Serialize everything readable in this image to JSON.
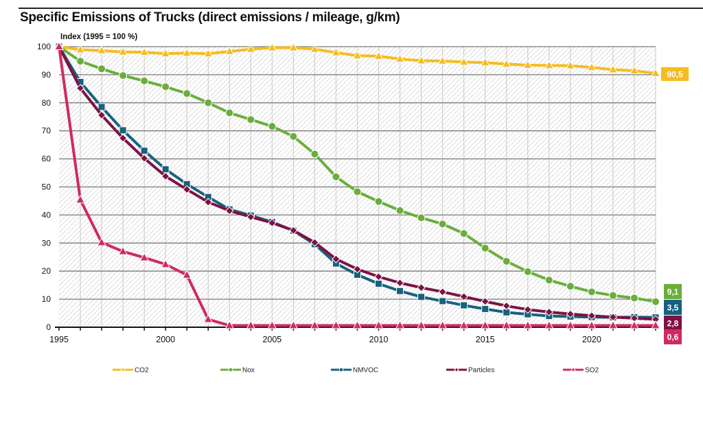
{
  "page": {
    "title": "Specific Emissions of Trucks (direct emissions / mileage, g/km)"
  },
  "chart_data": {
    "type": "line",
    "title": "Specific Emissions of Trucks (direct emissions / mileage, g/km)",
    "ylabel": "Index (1995 = 100 %)",
    "xlabel": "",
    "xlim": [
      1995,
      2023
    ],
    "ylim": [
      0,
      100
    ],
    "yticks": [
      0,
      10,
      20,
      30,
      40,
      50,
      60,
      70,
      80,
      90,
      100
    ],
    "xtick_labels": [
      1995,
      2000,
      2005,
      2010,
      2015,
      2020
    ],
    "grid": true,
    "legend_position": "bottom",
    "x": [
      1995,
      1996,
      1997,
      1998,
      1999,
      2000,
      2001,
      2002,
      2003,
      2004,
      2005,
      2006,
      2007,
      2008,
      2009,
      2010,
      2011,
      2012,
      2013,
      2014,
      2015,
      2016,
      2017,
      2018,
      2019,
      2020,
      2021,
      2022,
      2023
    ],
    "series": [
      {
        "name": "CO2",
        "color": "#f5bd1f",
        "marker": "triangle",
        "end_label": "90,5",
        "values": [
          100,
          98.9,
          98.6,
          98.1,
          98.0,
          97.5,
          97.7,
          97.5,
          98.3,
          99.1,
          99.6,
          99.6,
          99.1,
          97.9,
          96.8,
          96.6,
          95.6,
          95.0,
          94.9,
          94.5,
          94.3,
          93.8,
          93.4,
          93.3,
          93.2,
          92.6,
          91.8,
          91.4,
          90.5
        ]
      },
      {
        "name": "Nox",
        "color": "#6aae3c",
        "marker": "circle",
        "end_label": "9,1",
        "values": [
          100,
          94.8,
          92.1,
          89.7,
          87.8,
          85.7,
          83.3,
          80.0,
          76.4,
          74.0,
          71.6,
          68.0,
          61.7,
          53.6,
          48.3,
          44.8,
          41.6,
          39.0,
          36.8,
          33.4,
          28.2,
          23.5,
          19.8,
          16.8,
          14.6,
          12.6,
          11.3,
          10.4,
          9.1
        ]
      },
      {
        "name": "NMVOC",
        "color": "#17617f",
        "marker": "square",
        "end_label": "3,5",
        "values": [
          100,
          87.4,
          78.5,
          70.2,
          62.9,
          56.3,
          51.0,
          46.4,
          42.0,
          39.8,
          37.5,
          34.4,
          29.6,
          22.7,
          18.7,
          15.5,
          12.9,
          10.8,
          9.3,
          7.8,
          6.5,
          5.3,
          4.6,
          4.0,
          3.8,
          3.6,
          3.5,
          3.6,
          3.5
        ]
      },
      {
        "name": "Particles",
        "color": "#7e1242",
        "marker": "diamond",
        "end_label": "2,8",
        "values": [
          100,
          85.2,
          75.6,
          67.4,
          60.2,
          53.8,
          49.1,
          44.6,
          41.5,
          39.3,
          37.2,
          34.5,
          30.2,
          24.3,
          20.7,
          18.0,
          15.8,
          14.1,
          12.6,
          10.9,
          9.2,
          7.6,
          6.3,
          5.4,
          4.7,
          4.1,
          3.6,
          3.2,
          2.8
        ]
      },
      {
        "name": "SO2",
        "color": "#cf2a63",
        "marker": "triangle",
        "end_label": "0,6",
        "values": [
          100,
          45.4,
          30.2,
          27.0,
          24.8,
          22.4,
          18.6,
          2.8,
          0.6,
          0.6,
          0.6,
          0.6,
          0.6,
          0.6,
          0.6,
          0.6,
          0.6,
          0.6,
          0.6,
          0.6,
          0.6,
          0.6,
          0.6,
          0.6,
          0.6,
          0.6,
          0.6,
          0.6,
          0.6
        ]
      }
    ]
  }
}
